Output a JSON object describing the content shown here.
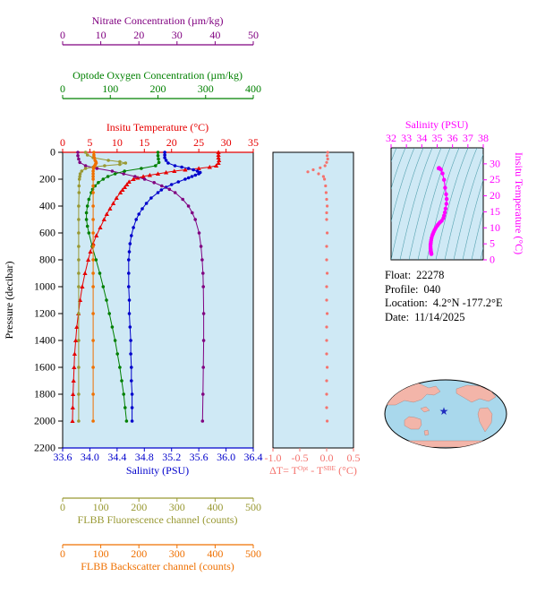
{
  "titles": {
    "nitrate": "Nitrate Concentration (µm/kg)",
    "oxygen": "Optode Oxygen Concentration (µm/kg)",
    "temperature": "Insitu Temperature (°C)",
    "pressure": "Pressure (decibar)",
    "salinity": "Salinity (PSU)",
    "fluorescence": "FLBB Fluorescence channel (counts)",
    "backscatter": "FLBB Backscatter channel (counts)",
    "ts_salinity": "Salinity (PSU)",
    "ts_temperature": "Insitu Temperature (°C)"
  },
  "delta_label": {
    "p1": "ΔT= T",
    "sup1": "Opt",
    "p2": " - T",
    "sup2": "SBE",
    "p3": " (°C)"
  },
  "float_info": {
    "float_label": "Float:",
    "float_value": "22278",
    "profile_label": "Profile:",
    "profile_value": "040",
    "location_label": "Location:",
    "location_value": "4.2°N -177.2°E",
    "date_label": "Date:",
    "date_value": "11/14/2025"
  },
  "icons": {
    "star": "★"
  },
  "colors": {
    "plot_bg": "#cfe9f5",
    "temperature": "#e60000",
    "salinity": "#0000cc",
    "nitrate": "#800080",
    "oxygen": "#008000",
    "fluorescence": "#999933",
    "backscatter": "#ef7000",
    "delta": "#f4736e",
    "ts": "#ff00ff",
    "contours": "#2e8b9a",
    "map_ocean": "#a9d8ec",
    "map_land": "#f3b5a9",
    "star": "#1f2dbf"
  },
  "chart_data": [
    {
      "id": "main-profiles",
      "type": "line",
      "ylabel": "Pressure (decibar)",
      "ylim": [
        0,
        2200
      ],
      "ytick_step": 200,
      "plot_bg": "#cfe9f5",
      "legend": "none",
      "grid": false,
      "series": [
        {
          "name": "Insitu Temperature (°C)",
          "slug": "temperature",
          "color": "#e60000",
          "marker": "triangle",
          "xlim": [
            0,
            35
          ],
          "xtick_step": 5,
          "xtick_decimals": 0,
          "pressure": [
            0,
            20,
            40,
            60,
            80,
            100,
            110,
            120,
            130,
            140,
            150,
            160,
            170,
            180,
            190,
            200,
            220,
            240,
            260,
            280,
            300,
            340,
            380,
            420,
            460,
            500,
            560,
            620,
            680,
            740,
            800,
            900,
            1000,
            1100,
            1200,
            1300,
            1400,
            1500,
            1600,
            1700,
            1800,
            1900,
            2000
          ],
          "values": [
            28.6,
            28.6,
            28.6,
            28.7,
            28.6,
            28.2,
            27.0,
            25.0,
            22.5,
            20.5,
            19.0,
            17.5,
            16.0,
            14.8,
            13.8,
            13.0,
            12.2,
            11.8,
            11.4,
            11.0,
            10.6,
            9.9,
            9.3,
            8.7,
            8.1,
            7.6,
            6.9,
            6.2,
            5.6,
            5.1,
            4.7,
            4.1,
            3.6,
            3.2,
            2.9,
            2.6,
            2.4,
            2.2,
            2.1,
            2.0,
            1.9,
            1.85,
            1.8
          ]
        },
        {
          "name": "Salinity (PSU)",
          "slug": "salinity",
          "color": "#0000cc",
          "marker": "circle",
          "xlim": [
            33.6,
            36.4
          ],
          "xtick_step": 0.4,
          "xtick_decimals": 1,
          "pressure": [
            0,
            20,
            40,
            60,
            80,
            100,
            110,
            120,
            130,
            140,
            150,
            160,
            170,
            180,
            190,
            200,
            220,
            240,
            260,
            280,
            300,
            340,
            380,
            420,
            460,
            500,
            560,
            620,
            680,
            740,
            800,
            900,
            1000,
            1100,
            1200,
            1300,
            1400,
            1500,
            1600,
            1700,
            1800,
            1900,
            2000
          ],
          "values": [
            35.1,
            35.1,
            35.1,
            35.12,
            35.15,
            35.25,
            35.35,
            35.45,
            35.52,
            35.58,
            35.62,
            35.6,
            35.55,
            35.5,
            35.45,
            35.4,
            35.3,
            35.2,
            35.12,
            35.05,
            35.0,
            34.9,
            34.83,
            34.77,
            34.72,
            34.68,
            34.64,
            34.61,
            34.59,
            34.58,
            34.57,
            34.57,
            34.57,
            34.58,
            34.58,
            34.59,
            34.6,
            34.6,
            34.61,
            34.61,
            34.62,
            34.62,
            34.62
          ]
        },
        {
          "name": "Nitrate Concentration (µm/kg)",
          "slug": "nitrate",
          "color": "#800080",
          "marker": "circle",
          "xlim": [
            0,
            50
          ],
          "xtick_step": 10,
          "xtick_decimals": 0,
          "pressure": [
            0,
            25,
            50,
            75,
            100,
            120,
            140,
            160,
            180,
            200,
            225,
            250,
            275,
            300,
            350,
            400,
            450,
            500,
            600,
            700,
            800,
            900,
            1000,
            1200,
            1400,
            1600,
            1800,
            2000
          ],
          "values": [
            4,
            4,
            4.2,
            4.5,
            6,
            9,
            13,
            16,
            19,
            21.5,
            24,
            26,
            28,
            29.5,
            31.5,
            33,
            34,
            34.8,
            35.8,
            36.3,
            36.6,
            36.8,
            36.9,
            37,
            37,
            36.9,
            36.8,
            36.7
          ]
        },
        {
          "name": "Optode Oxygen Concentration (µm/kg)",
          "slug": "oxygen",
          "color": "#008000",
          "marker": "circle",
          "xlim": [
            0,
            400
          ],
          "xtick_step": 100,
          "xtick_decimals": 0,
          "pressure": [
            0,
            25,
            50,
            75,
            100,
            120,
            140,
            160,
            180,
            200,
            225,
            250,
            275,
            300,
            350,
            400,
            450,
            500,
            550,
            600,
            700,
            800,
            900,
            1000,
            1100,
            1200,
            1300,
            1400,
            1500,
            1600,
            1700,
            1800,
            1900,
            2000
          ],
          "values": [
            200,
            200,
            201,
            202,
            195,
            165,
            130,
            110,
            95,
            85,
            75,
            68,
            63,
            60,
            55,
            52,
            50,
            50,
            52,
            55,
            62,
            70,
            78,
            85,
            92,
            98,
            104,
            110,
            115,
            120,
            124,
            128,
            131,
            134
          ]
        },
        {
          "name": "FLBB Fluorescence channel (counts)",
          "slug": "fluorescence",
          "color": "#999933",
          "marker": "circle",
          "xlim": [
            0,
            500
          ],
          "xtick_step": 100,
          "xtick_decimals": 0,
          "pressure": [
            0,
            20,
            40,
            60,
            70,
            80,
            90,
            100,
            110,
            120,
            140,
            160,
            180,
            200,
            250,
            300,
            400,
            500,
            600,
            700,
            800,
            900,
            1000,
            1200,
            1400,
            1600,
            1800,
            2000
          ],
          "values": [
            60,
            65,
            80,
            120,
            150,
            165,
            150,
            110,
            80,
            60,
            50,
            46,
            45,
            44,
            43,
            43,
            42,
            42,
            42,
            42,
            42,
            42,
            42,
            42,
            42,
            42,
            42,
            42
          ]
        },
        {
          "name": "FLBB Backscatter channel (counts)",
          "slug": "backscatter",
          "color": "#ef7000",
          "marker": "circle",
          "xlim": [
            0,
            500
          ],
          "xtick_step": 100,
          "xtick_decimals": 0,
          "pressure": [
            0,
            20,
            40,
            60,
            70,
            80,
            90,
            100,
            110,
            120,
            140,
            160,
            180,
            200,
            250,
            300,
            400,
            500,
            600,
            700,
            800,
            900,
            1000,
            1200,
            1400,
            1600,
            1800,
            2000
          ],
          "values": [
            82,
            82,
            83,
            85,
            87,
            88,
            86,
            84,
            82,
            81,
            80,
            80,
            80,
            80,
            80,
            80,
            80,
            80,
            80,
            80,
            80,
            80,
            80,
            80,
            80,
            80,
            80,
            80
          ]
        }
      ]
    },
    {
      "id": "delta-t",
      "type": "scatter",
      "xlabel": "ΔT= T^Opt - T^SBE (°C)",
      "xlim": [
        -1.0,
        0.5
      ],
      "xtick_step": 0.5,
      "xtick_decimals": 1,
      "ylim": [
        0,
        2200
      ],
      "color": "#f4736e",
      "pressure": [
        0,
        25,
        50,
        75,
        100,
        115,
        130,
        145,
        160,
        180,
        200,
        250,
        300,
        350,
        400,
        450,
        500,
        600,
        700,
        800,
        900,
        1000,
        1100,
        1200,
        1300,
        1400,
        1500,
        1600,
        1700,
        1800,
        1900,
        2000
      ],
      "values": [
        0.02,
        0.01,
        0.02,
        0.0,
        -0.03,
        -0.12,
        -0.25,
        -0.35,
        -0.15,
        -0.06,
        -0.04,
        -0.02,
        -0.01,
        0.0,
        0.01,
        0.0,
        0.0,
        0.01,
        0.0,
        0.0,
        0.01,
        0.0,
        0.0,
        0.01,
        0.0,
        0.0,
        0.0,
        0.01,
        0.0,
        0.0,
        0.0,
        0.01
      ]
    },
    {
      "id": "ts-diagram",
      "type": "scatter",
      "xlabel": "Salinity (PSU)",
      "xlim": [
        32,
        38
      ],
      "xtick_step": 1,
      "ylabel": "Insitu Temperature (°C)",
      "ylim": [
        0,
        35
      ],
      "yticks": [
        0,
        5,
        10,
        15,
        20,
        25,
        30
      ],
      "color": "#ff00ff",
      "note": "temperature-salinity pairs with density contour background",
      "salinity": [
        35.1,
        35.1,
        35.1,
        35.12,
        35.15,
        35.25,
        35.35,
        35.45,
        35.52,
        35.58,
        35.62,
        35.6,
        35.55,
        35.5,
        35.45,
        35.4,
        35.3,
        35.2,
        35.12,
        35.05,
        35.0,
        34.9,
        34.83,
        34.77,
        34.72,
        34.68,
        34.64,
        34.61,
        34.59,
        34.58,
        34.57,
        34.57,
        34.57,
        34.58,
        34.58,
        34.59,
        34.6,
        34.6,
        34.61,
        34.61,
        34.62,
        34.62,
        34.62
      ],
      "temperature": [
        28.6,
        28.6,
        28.6,
        28.7,
        28.6,
        28.2,
        27.0,
        25.0,
        22.5,
        20.5,
        19.0,
        17.5,
        16.0,
        14.8,
        13.8,
        13.0,
        12.2,
        11.8,
        11.4,
        11.0,
        10.6,
        9.9,
        9.3,
        8.7,
        8.1,
        7.6,
        6.9,
        6.2,
        5.6,
        5.1,
        4.7,
        4.1,
        3.6,
        3.2,
        2.9,
        2.6,
        2.4,
        2.2,
        2.1,
        2.0,
        1.9,
        1.85,
        1.8
      ]
    }
  ]
}
